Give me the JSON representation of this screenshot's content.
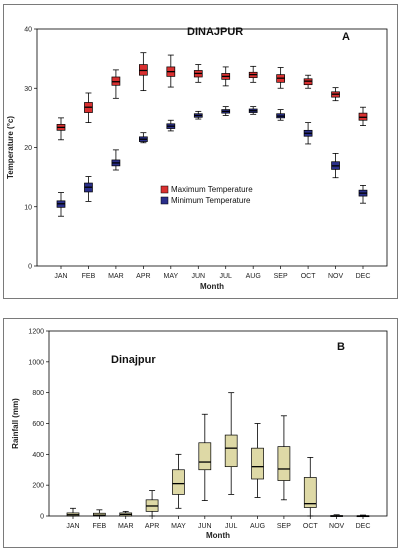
{
  "chart_data": [
    {
      "type": "box",
      "panel_letter": "A",
      "title": "DINAJPUR",
      "xlabel": "Month",
      "ylabel": "Temperature (°c)",
      "ylim": [
        0,
        40
      ],
      "yticks": [
        "0",
        "10",
        "20",
        "30",
        "40"
      ],
      "categories": [
        "JAN",
        "FEB",
        "MAR",
        "APR",
        "MAY",
        "JUN",
        "JUL",
        "AUG",
        "SEP",
        "OCT",
        "NOV",
        "DEC"
      ],
      "legend_position": "bottom-left",
      "series": [
        {
          "name": "Maximum Temperature",
          "color": "#d93030",
          "low": [
            21.3,
            24.2,
            28.3,
            29.6,
            30.2,
            31.0,
            30.4,
            31.0,
            30.0,
            30.0,
            27.9,
            23.7
          ],
          "q1": [
            22.9,
            25.9,
            30.5,
            32.2,
            32.0,
            31.9,
            31.5,
            31.8,
            31.0,
            30.6,
            28.5,
            24.6
          ],
          "median": [
            23.4,
            26.8,
            31.1,
            33.0,
            32.8,
            32.5,
            32.0,
            32.3,
            31.7,
            31.2,
            29.0,
            25.1
          ],
          "q3": [
            23.9,
            27.6,
            31.9,
            34.0,
            33.6,
            33.0,
            32.5,
            32.7,
            32.3,
            31.6,
            29.4,
            25.8
          ],
          "high": [
            25.0,
            29.2,
            33.1,
            36.0,
            35.6,
            34.0,
            33.6,
            33.7,
            33.5,
            32.2,
            30.1,
            26.8
          ]
        },
        {
          "name": "Minimum Temperature",
          "color": "#2a2f8a",
          "low": [
            8.4,
            10.9,
            16.2,
            20.8,
            22.8,
            24.8,
            25.4,
            25.6,
            24.6,
            20.6,
            14.9,
            10.6
          ],
          "q1": [
            9.9,
            12.5,
            16.9,
            21.0,
            23.2,
            25.1,
            25.8,
            25.9,
            25.0,
            21.9,
            16.3,
            11.8
          ],
          "median": [
            10.5,
            13.3,
            17.4,
            21.4,
            23.6,
            25.4,
            26.1,
            26.2,
            25.3,
            22.4,
            16.9,
            12.3
          ],
          "q3": [
            11.0,
            14.0,
            17.9,
            21.8,
            24.0,
            25.7,
            26.4,
            26.5,
            25.7,
            22.9,
            17.6,
            12.8
          ],
          "high": [
            12.4,
            15.1,
            19.6,
            22.5,
            24.6,
            26.1,
            26.9,
            26.9,
            26.4,
            24.2,
            19.0,
            13.6
          ]
        }
      ]
    },
    {
      "type": "box",
      "panel_letter": "B",
      "title": "Dinajpur",
      "xlabel": "Month",
      "ylabel": "Rainfall (mm)",
      "ylim": [
        0,
        1200
      ],
      "yticks": [
        "0",
        "200",
        "400",
        "600",
        "800",
        "1000",
        "1200"
      ],
      "categories": [
        "JAN",
        "FEB",
        "MAR",
        "APR",
        "MAY",
        "JUN",
        "JUL",
        "AUG",
        "SEP",
        "OCT",
        "NOV",
        "DEC"
      ],
      "series": [
        {
          "name": "",
          "color": "#ded9a6",
          "low": [
            0,
            0,
            0,
            0,
            50,
            100,
            140,
            120,
            105,
            0,
            0,
            0
          ],
          "q1": [
            0,
            0,
            0,
            30,
            140,
            300,
            320,
            240,
            230,
            55,
            0,
            0
          ],
          "median": [
            8,
            5,
            10,
            65,
            210,
            350,
            440,
            320,
            305,
            80,
            0,
            0
          ],
          "q3": [
            20,
            18,
            20,
            105,
            300,
            475,
            525,
            440,
            450,
            250,
            3,
            2
          ],
          "high": [
            50,
            40,
            30,
            165,
            400,
            660,
            800,
            600,
            650,
            380,
            8,
            6
          ]
        }
      ]
    }
  ]
}
